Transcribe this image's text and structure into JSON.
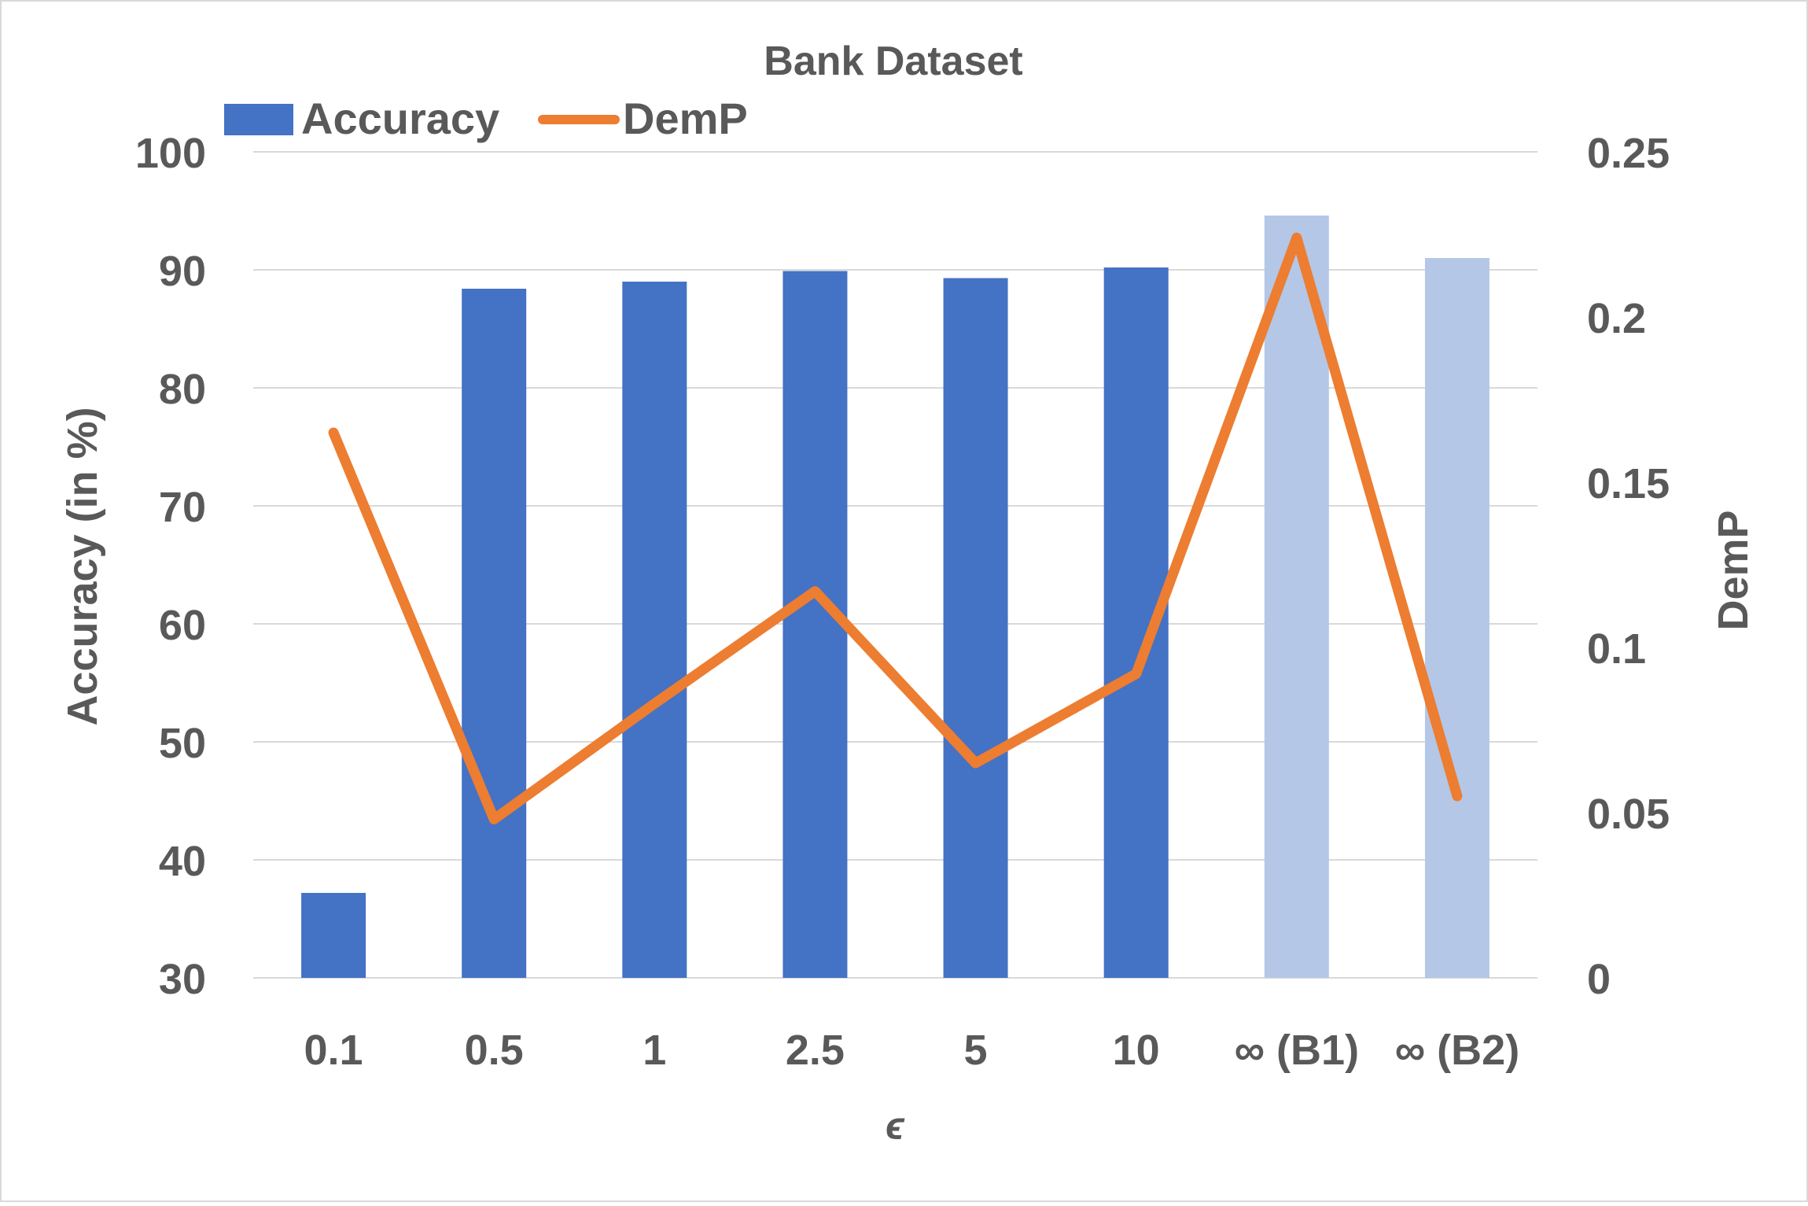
{
  "chart_data": {
    "type": "bar",
    "title": "Bank Dataset",
    "xlabel": "ϵ",
    "ylabel": "Accuracy (in %)",
    "y2label": "DemP",
    "categories": [
      "0.1",
      "0.5",
      "1",
      "2.5",
      "5",
      "10",
      "∞ (B1)",
      "∞ (B2)"
    ],
    "ylim": [
      30,
      100
    ],
    "yticks": [
      30,
      40,
      50,
      60,
      70,
      80,
      90,
      100
    ],
    "y2lim": [
      0,
      0.25
    ],
    "y2ticks": [
      "0",
      "0.05",
      "0.1",
      "0.15",
      "0.2",
      "0.25"
    ],
    "grid": true,
    "legend_position": "top-left",
    "series": [
      {
        "name": "Accuracy",
        "kind": "bar",
        "axis": "left",
        "values": [
          37.2,
          88.4,
          89.0,
          89.9,
          89.3,
          90.2,
          94.6,
          91.0
        ],
        "colors": [
          "#4472C4",
          "#4472C4",
          "#4472C4",
          "#4472C4",
          "#4472C4",
          "#4472C4",
          "#B4C7E7",
          "#B4C7E7"
        ]
      },
      {
        "name": "DemP",
        "kind": "line",
        "axis": "right",
        "color": "#ED7D31",
        "values": [
          0.165,
          0.048,
          0.083,
          0.117,
          0.065,
          0.092,
          0.224,
          0.055
        ]
      }
    ]
  }
}
